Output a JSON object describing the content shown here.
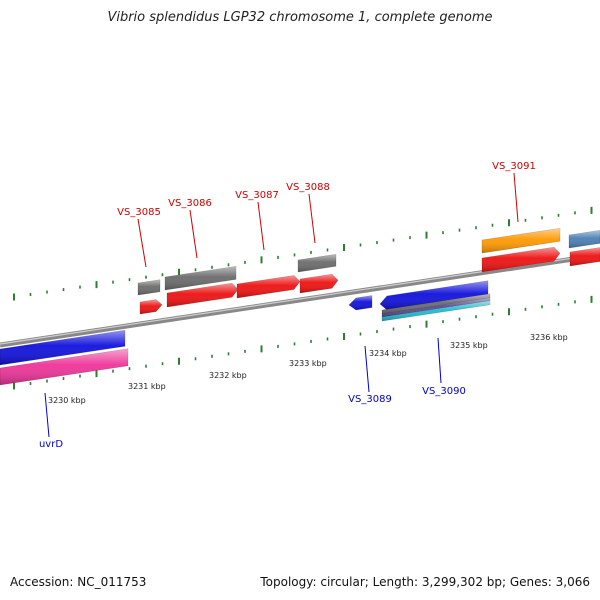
{
  "title": "Vibrio splendidus LGP32 chromosome 1, complete genome",
  "footer": {
    "accession": "Accession: NC_011753",
    "summary": "Topology: circular; Length: 3,299,302 bp; Genes: 3,066"
  },
  "colors": {
    "backbone": "#8a8a8a",
    "tick": "#2e7d32",
    "forward_label": "#cc0000",
    "reverse_label": "#0000cc",
    "gene_red": "#ee1111",
    "gene_gray": "#6b6b6b",
    "gene_blue": "#1010dd",
    "gene_pink": "#ee3399",
    "gene_orange": "#ff9900",
    "gene_steel": "#4a7fb5",
    "gene_purple": "#5a4a9a",
    "gene_cyan": "#22bbcc"
  },
  "chart_data": {
    "type": "genome-map",
    "tick_labels": [
      "3230 kbp",
      "3231 kbp",
      "3232 kbp",
      "3233 kbp",
      "3234 kbp",
      "3235 kbp",
      "3236 kbp"
    ],
    "gene_labels": [
      {
        "name": "VS_3085",
        "strand": "forward"
      },
      {
        "name": "VS_3086",
        "strand": "forward"
      },
      {
        "name": "VS_3087",
        "strand": "forward"
      },
      {
        "name": "VS_3088",
        "strand": "forward"
      },
      {
        "name": "VS_3091",
        "strand": "forward"
      },
      {
        "name": "VS_3089",
        "strand": "reverse"
      },
      {
        "name": "VS_3090",
        "strand": "reverse"
      },
      {
        "name": "uvrD",
        "strand": "reverse"
      }
    ]
  }
}
